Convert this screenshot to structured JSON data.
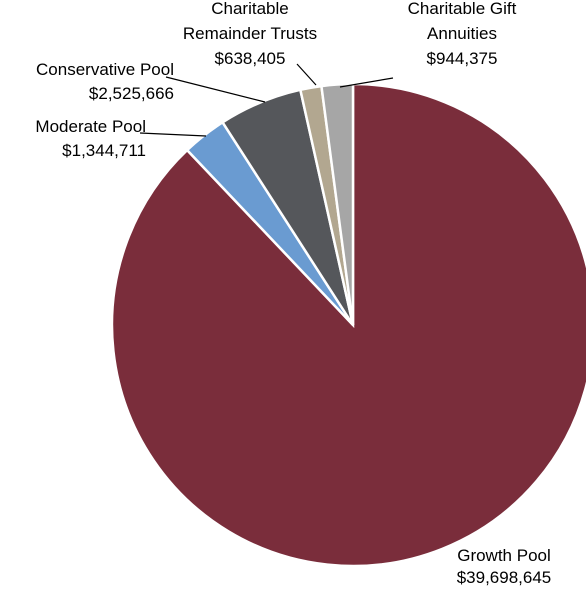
{
  "chart_data": {
    "type": "pie",
    "start": "top",
    "direction": "clockwise",
    "slices": [
      {
        "name": "Growth Pool",
        "value": 39698645,
        "value_label": "$39,698,645",
        "label_lines": [
          "Growth Pool",
          "$39,698,645"
        ],
        "color": "#7a2d3b"
      },
      {
        "name": "Moderate Pool",
        "value": 1344711,
        "value_label": "$1,344,711",
        "label_lines": [
          "Moderate Pool",
          "$1,344,711"
        ],
        "color": "#6a9bd1"
      },
      {
        "name": "Conservative Pool",
        "value": 2525666,
        "value_label": "$2,525,666",
        "label_lines": [
          "Conservative Pool",
          "$2,525,666"
        ],
        "color": "#55575b"
      },
      {
        "name": "Charitable Remainder Trusts",
        "value": 638405,
        "value_label": "$638,405",
        "label_lines": [
          "Charitable",
          "Remainder Trusts",
          "$638,405"
        ],
        "color": "#b2a790"
      },
      {
        "name": "Charitable Gift Annuities",
        "value": 944375,
        "value_label": "$944,375",
        "label_lines": [
          "Charitable Gift",
          "Annuities",
          "$944,375"
        ],
        "color": "#a6a6a6"
      }
    ]
  }
}
